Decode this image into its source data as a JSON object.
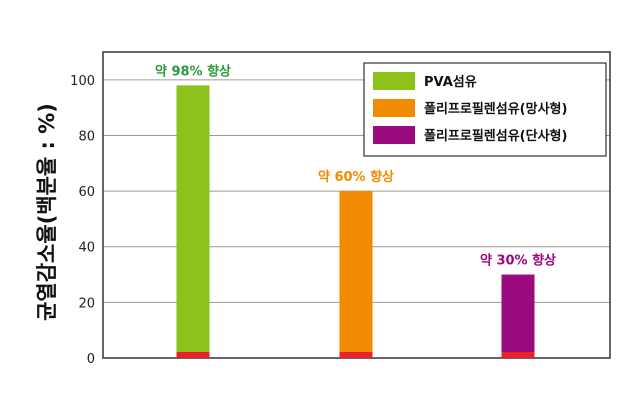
{
  "chart_data": {
    "type": "bar",
    "ylabel": "균열감소율(백분율 : %)",
    "ylim": [
      0,
      110
    ],
    "yticks": [
      "0",
      "20",
      "40",
      "60",
      "80",
      "100"
    ],
    "ytick_values": [
      0,
      20,
      40,
      60,
      80,
      100
    ],
    "grid": true,
    "legend_position": "top-right",
    "series": [
      {
        "name": "PVA섬유",
        "value": 98,
        "color": "#8cc21a",
        "annotation": "약 98% 향상",
        "annotation_color": "#2c9a3c"
      },
      {
        "name": "폴리프로필렌섬유(망사형)",
        "value": 60,
        "color": "#f08a00",
        "annotation": "약 60% 향상",
        "annotation_color": "#f08a00"
      },
      {
        "name": "폴리프로필렌섬유(단사형)",
        "value": 30,
        "color": "#9b0a7e",
        "annotation": "약 30% 향상",
        "annotation_color": "#9b0a7e"
      }
    ],
    "base_color": "#e8202a"
  }
}
